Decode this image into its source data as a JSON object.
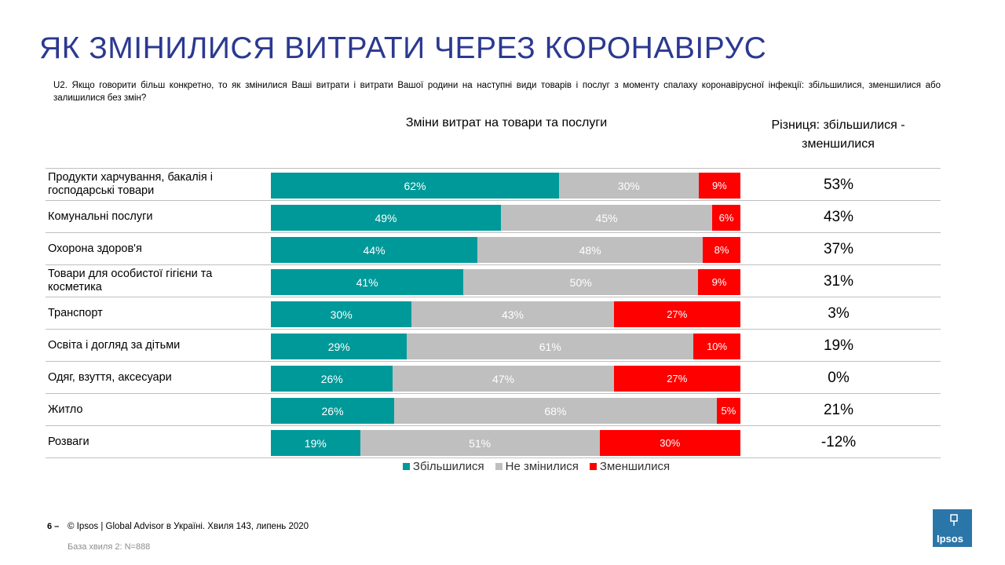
{
  "page": {
    "title": "ЯК ЗМІНИЛИСЯ ВИТРАТИ ЧЕРЕЗ КОРОНАВІРУС",
    "question": "U2. Якщо говорити більш конкретно,  то як змінилися  Ваші витрати  і витрати  Вашої родини на наступні види товарів  і послуг з моменту  спалаху коронавірусної інфекції:  збільшилися, зменшилися  або залишилися  без змін?",
    "chart_heading": "Зміни витрат на товари та послуги",
    "diff_heading": "Різниця: збільшилися - зменшилися",
    "footer_number": "6 –",
    "footer_text": "© Ipsos | Global Advisor в Україні. Хвиля 143, липень 2020",
    "base_text": "База хвиля 2: N=888",
    "logo_text": "Ipsos"
  },
  "chart_data": {
    "type": "bar",
    "stacked": true,
    "orientation": "horizontal",
    "categories": [
      "Продукти харчування, бакалія і господарські товари",
      "Комунальні  послуги",
      "Охорона здоров'я",
      "Товари для особистої гігієни та косметика",
      "Транспорт",
      "Освіта і догляд за дітьми",
      "Одяг, взуття, аксесуари",
      "Житло",
      "Розваги"
    ],
    "series": [
      {
        "name": "Збільшилися",
        "color": "#009999",
        "values": [
          62,
          49,
          44,
          41,
          30,
          29,
          26,
          26,
          19
        ]
      },
      {
        "name": "Не змінилися",
        "color": "#bfbfbf",
        "values": [
          30,
          45,
          48,
          50,
          43,
          61,
          47,
          68,
          51
        ]
      },
      {
        "name": "Зменшилися",
        "color": "#ff0000",
        "values": [
          9,
          6,
          8,
          9,
          27,
          10,
          27,
          5,
          30
        ]
      }
    ],
    "difference": [
      "53%",
      "43%",
      "37%",
      "31%",
      "3%",
      "19%",
      "0%",
      "21%",
      "-12%"
    ],
    "legend": "bottom",
    "grid": false
  }
}
